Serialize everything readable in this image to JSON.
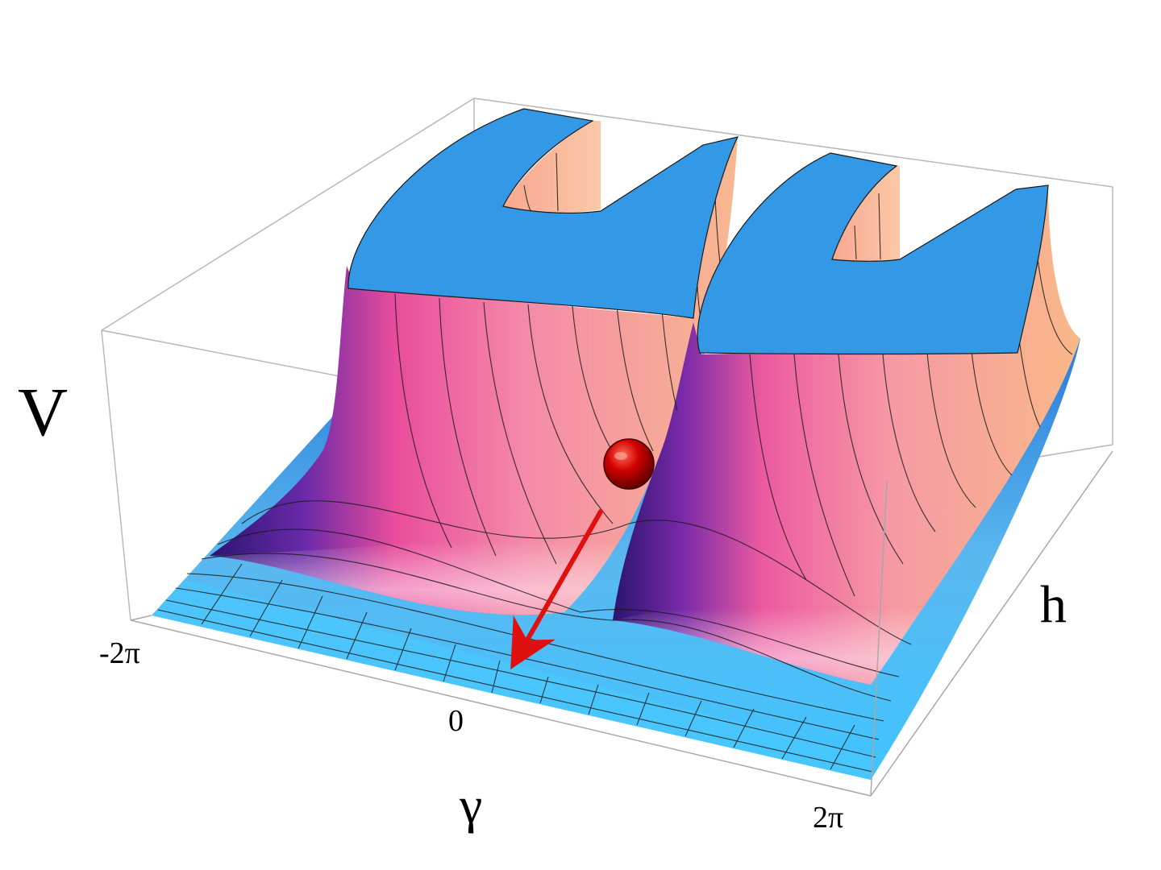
{
  "figure": {
    "axes": {
      "vertical": "V",
      "depth": "h",
      "horizontal": "γ"
    },
    "gamma_ticks": [
      "-2π",
      "0",
      "2π"
    ],
    "colors": {
      "surface_top": "#3399e6",
      "floor": "#40c4ff",
      "ridge_pink": "#f060a0",
      "ridge_peach": "#f8b088",
      "ridge_dark": "#3a1a8a",
      "ball": "#cc0000",
      "arrow": "#e01010"
    },
    "marker": "ball",
    "arrow_direction": "down-slope"
  }
}
